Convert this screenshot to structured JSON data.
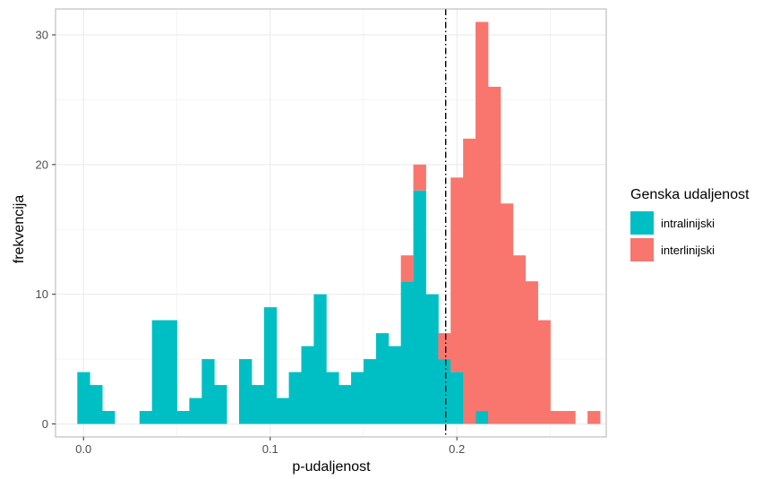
{
  "chart_data": {
    "type": "bar",
    "subtype": "stacked-histogram",
    "title": "",
    "xlabel": "p-udaljenost",
    "ylabel": "frekvencija",
    "xlim": [
      -0.015,
      0.28
    ],
    "ylim": [
      -1,
      32
    ],
    "x_ticks": [
      0.0,
      0.1,
      0.2
    ],
    "x_tick_labels": [
      "0.0",
      "0.1",
      "0.2"
    ],
    "y_ticks": [
      0,
      10,
      20,
      30
    ],
    "y_tick_labels": [
      "0",
      "10",
      "20",
      "30"
    ],
    "bin_width": 0.00667,
    "bin_centers": [
      0.0,
      0.00667,
      0.01333,
      0.02,
      0.02667,
      0.03333,
      0.04,
      0.04667,
      0.05333,
      0.06,
      0.06667,
      0.07333,
      0.08,
      0.08667,
      0.09333,
      0.1,
      0.10667,
      0.11333,
      0.12,
      0.12667,
      0.13333,
      0.14,
      0.14667,
      0.15333,
      0.16,
      0.16667,
      0.17333,
      0.18,
      0.18667,
      0.19333,
      0.2,
      0.20667,
      0.21333,
      0.22,
      0.22667,
      0.23333,
      0.24,
      0.24667,
      0.25333,
      0.26,
      0.26667,
      0.27333
    ],
    "series": [
      {
        "name": "intralinijski",
        "color": "#00BFC4",
        "values": [
          4,
          3,
          1,
          0,
          0,
          1,
          8,
          8,
          1,
          2,
          5,
          3,
          0,
          5,
          3,
          9,
          2,
          4,
          6,
          10,
          4,
          3,
          4,
          5,
          7,
          6,
          11,
          18,
          10,
          5,
          4,
          0,
          1,
          0,
          0,
          0,
          0,
          0,
          0,
          0,
          0,
          0
        ]
      },
      {
        "name": "interlinijski",
        "color": "#F8766D",
        "values": [
          0,
          0,
          0,
          0,
          0,
          0,
          0,
          0,
          0,
          0,
          0,
          0,
          0,
          0,
          0,
          0,
          0,
          0,
          0,
          0,
          0,
          0,
          0,
          0,
          0,
          0,
          2,
          2,
          0,
          2,
          15,
          22,
          30,
          26,
          17,
          13,
          11,
          8,
          1,
          1,
          0,
          1
        ]
      }
    ],
    "vline": {
      "x": 0.194,
      "style": "dot-dash",
      "color": "#000000"
    },
    "grid": true,
    "legend": {
      "title": "Genska udaljenost",
      "placement": "right"
    }
  }
}
